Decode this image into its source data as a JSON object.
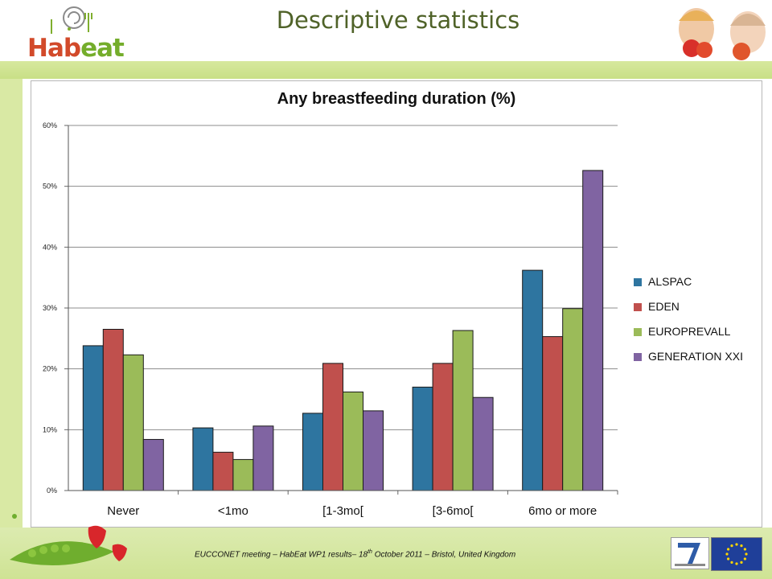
{
  "header": {
    "brand_prefix": "Hab",
    "brand_suffix": "eat",
    "slide_title": "Descriptive statistics"
  },
  "chart_data": {
    "type": "bar",
    "title": "Any breastfeeding duration (%)",
    "categories": [
      "Never",
      "<1mo",
      "[1-3mo[",
      "[3-6mo[",
      "6mo or more"
    ],
    "y_ticks": [
      "0%",
      "10%",
      "20%",
      "30%",
      "40%",
      "50%",
      "60%"
    ],
    "ylim": [
      0,
      60
    ],
    "ylabel": "",
    "xlabel": "",
    "grid": true,
    "legend_position": "right",
    "series": [
      {
        "name": "ALSPAC",
        "color": "#2e75a0",
        "values": [
          23.8,
          10.3,
          12.7,
          17.0,
          36.2
        ]
      },
      {
        "name": "EDEN",
        "color": "#c0504d",
        "values": [
          26.5,
          6.3,
          20.9,
          20.9,
          25.3
        ]
      },
      {
        "name": "EUROPREVALL",
        "color": "#9bbb59",
        "values": [
          22.3,
          5.1,
          16.2,
          26.3,
          29.9
        ]
      },
      {
        "name": "GENERATION XXI",
        "color": "#8064a2",
        "values": [
          8.4,
          10.6,
          13.1,
          15.3,
          52.6
        ]
      }
    ]
  },
  "footer": {
    "text_before": "EUCCONET meeting – HabEat WP1 results– 18",
    "text_sup": "th",
    "text_after": " October 2011 – Bristol, United Kingdom"
  }
}
